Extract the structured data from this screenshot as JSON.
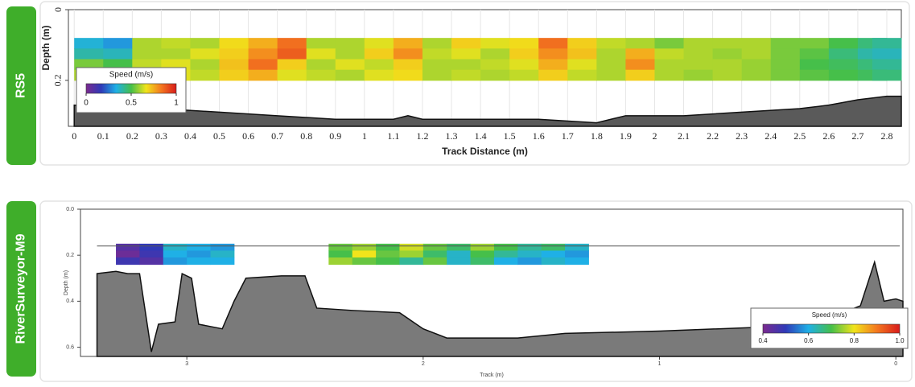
{
  "chart_data": [
    {
      "type": "velocity-profile",
      "panel_label": "RS5",
      "x_label": "Track Distance (m)",
      "y_label": "Depth (m)",
      "xlim": [
        -0.02,
        2.85
      ],
      "xticks": [
        0,
        0.1,
        0.2,
        0.3,
        0.4,
        0.5,
        0.6,
        0.7,
        0.8,
        0.9,
        1,
        1.1,
        1.2,
        1.3,
        1.4,
        1.5,
        1.6,
        1.7,
        1.8,
        1.9,
        2,
        2.1,
        2.2,
        2.3,
        2.4,
        2.5,
        2.6,
        2.7,
        2.8
      ],
      "ylim": [
        0,
        0.33
      ],
      "yticks": [
        0,
        0.2
      ],
      "grid": true,
      "colormap": [
        "#7b2a8f",
        "#2f3ab8",
        "#1fb0e6",
        "#46bf4a",
        "#f1e41b",
        "#f4781f",
        "#d81b1b"
      ],
      "clim": [
        0,
        1
      ],
      "colorbar": {
        "title": "Speed (m/s)",
        "ticks": [
          0,
          0.5,
          1
        ]
      },
      "cells": {
        "cell_width": 0.1,
        "cell_height": 0.03,
        "x": [
          0.05,
          0.15,
          0.25,
          0.35,
          0.45,
          0.55,
          0.65,
          0.75,
          0.85,
          0.95,
          1.05,
          1.15,
          1.25,
          1.35,
          1.45,
          1.55,
          1.65,
          1.75,
          1.85,
          1.95,
          2.05,
          2.15,
          2.25,
          2.35,
          2.45,
          2.55,
          2.65,
          2.75,
          2.8
        ],
        "depths": [
          0.095,
          0.125,
          0.155,
          0.185
        ],
        "values": [
          [
            0.35,
            0.3,
            0.6,
            0.62,
            0.6,
            0.68,
            0.75,
            0.85,
            0.6,
            0.6,
            0.65,
            0.75,
            0.6,
            0.7,
            0.65,
            0.68,
            0.85,
            0.7,
            0.62,
            0.6,
            0.55,
            0.6,
            0.6,
            0.6,
            0.55,
            0.55,
            0.5,
            0.45,
            0.42
          ],
          [
            0.4,
            0.38,
            0.6,
            0.6,
            0.65,
            0.7,
            0.8,
            0.88,
            0.65,
            0.6,
            0.7,
            0.8,
            0.62,
            0.65,
            0.6,
            0.7,
            0.8,
            0.72,
            0.6,
            0.75,
            0.62,
            0.6,
            0.58,
            0.6,
            0.55,
            0.52,
            0.45,
            0.4,
            0.38
          ],
          [
            0.55,
            0.5,
            0.62,
            0.65,
            0.6,
            0.72,
            0.85,
            0.7,
            0.6,
            0.65,
            0.62,
            0.7,
            0.6,
            0.6,
            0.62,
            0.65,
            0.75,
            0.65,
            0.6,
            0.8,
            0.6,
            0.6,
            0.6,
            0.58,
            0.55,
            0.5,
            0.48,
            0.45,
            0.42
          ],
          [
            0.6,
            0.62,
            0.62,
            0.65,
            0.62,
            0.7,
            0.75,
            0.65,
            0.62,
            0.6,
            0.65,
            0.68,
            0.6,
            0.62,
            0.6,
            0.62,
            0.7,
            0.62,
            0.6,
            0.7,
            0.6,
            0.58,
            0.6,
            0.58,
            0.55,
            0.52,
            0.5,
            0.48,
            0.45
          ]
        ]
      },
      "bed": {
        "color": "#5a5a5a",
        "x": [
          0,
          0.3,
          0.5,
          0.7,
          0.9,
          1.1,
          1.15,
          1.2,
          1.4,
          1.6,
          1.8,
          1.9,
          2.1,
          2.3,
          2.5,
          2.6,
          2.7,
          2.8,
          2.85
        ],
        "depth": [
          0.27,
          0.28,
          0.29,
          0.3,
          0.31,
          0.31,
          0.3,
          0.31,
          0.31,
          0.31,
          0.32,
          0.3,
          0.3,
          0.29,
          0.28,
          0.27,
          0.255,
          0.245,
          0.245
        ]
      }
    },
    {
      "type": "velocity-profile",
      "panel_label": "RiverSurveyor-M9",
      "x_label": "Track (m)",
      "y_label": "Depth (m)",
      "xlim": [
        3.45,
        -0.03
      ],
      "xticks": [
        3,
        2,
        1,
        0
      ],
      "ylim": [
        0,
        0.64
      ],
      "yticks": [
        {
          "value": 0,
          "label": "0.0"
        },
        0.2,
        0.4,
        0.6
      ],
      "grid": false,
      "colormap": [
        "#7b2a8f",
        "#2f3ab8",
        "#1fb0e6",
        "#46bf4a",
        "#f1e41b",
        "#f4781f",
        "#d81b1b"
      ],
      "clim": [
        0.4,
        1.0
      ],
      "colorbar": {
        "title": "Speed (m/s)",
        "ticks": [
          0.4,
          0.6,
          0.8,
          {
            "value": 1.0,
            "label": "1.0"
          }
        ]
      },
      "transducer_depth": 0.16,
      "cells": {
        "cell_width": 0.1,
        "cell_height": 0.03,
        "x": [
          3.25,
          3.15,
          3.05,
          2.95,
          2.85,
          2.75,
          2.65,
          2.55,
          2.45,
          2.35,
          2.25,
          2.15,
          2.05,
          1.95,
          1.85,
          1.75,
          1.65,
          1.55,
          1.45,
          1.35
        ],
        "depths": [
          0.165,
          0.195,
          0.225
        ],
        "values": [
          [
            0.45,
            0.5,
            0.62,
            0.6,
            0.58,
            null,
            null,
            null,
            null,
            0.72,
            0.75,
            0.7,
            0.78,
            0.72,
            0.68,
            0.75,
            0.7,
            0.65,
            0.68,
            0.62
          ],
          [
            0.42,
            0.48,
            0.6,
            0.58,
            0.62,
            null,
            null,
            null,
            null,
            0.7,
            0.8,
            0.72,
            0.75,
            0.68,
            0.62,
            0.7,
            0.65,
            0.62,
            0.6,
            0.58
          ],
          [
            0.48,
            0.45,
            0.58,
            0.6,
            0.6,
            null,
            null,
            null,
            null,
            0.75,
            0.72,
            0.7,
            0.65,
            0.72,
            0.62,
            0.68,
            0.6,
            0.58,
            0.62,
            0.6
          ]
        ]
      },
      "bed": {
        "color": "#7a7a7a",
        "x": [
          3.38,
          3.3,
          3.25,
          3.2,
          3.15,
          3.12,
          3.05,
          3.02,
          2.98,
          2.95,
          2.85,
          2.8,
          2.75,
          2.6,
          2.5,
          2.45,
          2.3,
          2.1,
          2.0,
          1.9,
          1.6,
          1.4,
          1.0,
          0.5,
          0.3,
          0.15,
          0.09,
          0.05,
          0.0,
          -0.03
        ],
        "depth": [
          0.28,
          0.27,
          0.28,
          0.28,
          0.62,
          0.5,
          0.49,
          0.28,
          0.3,
          0.5,
          0.52,
          0.4,
          0.3,
          0.29,
          0.29,
          0.43,
          0.44,
          0.45,
          0.52,
          0.56,
          0.56,
          0.54,
          0.53,
          0.51,
          0.48,
          0.42,
          0.23,
          0.4,
          0.39,
          0.4
        ]
      }
    }
  ]
}
